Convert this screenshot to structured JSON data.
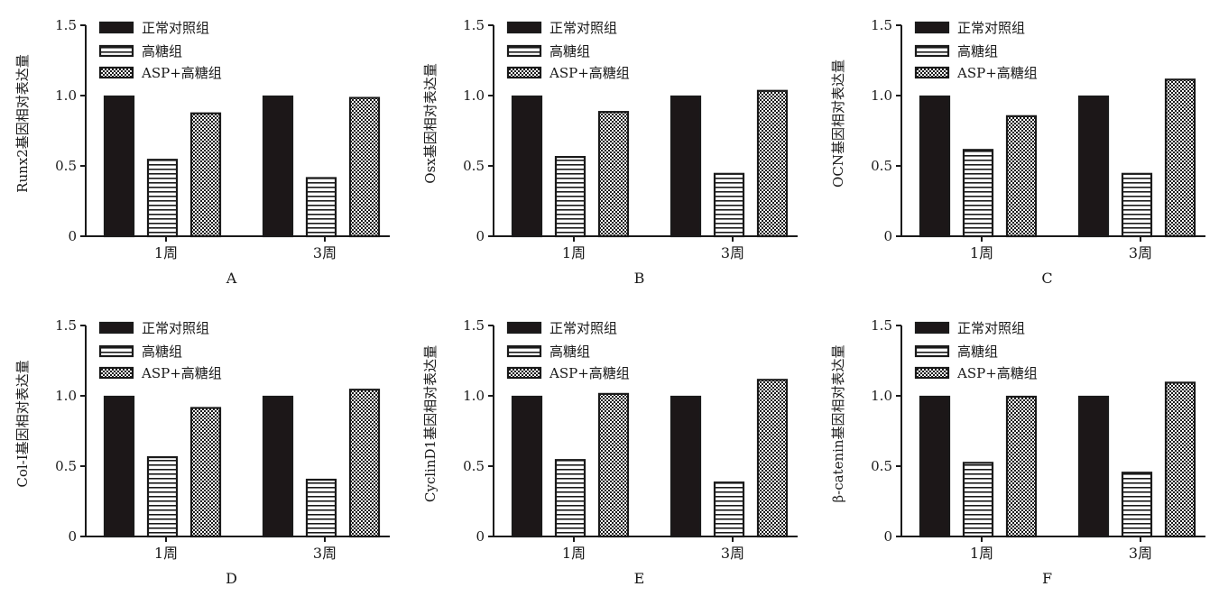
{
  "colors": {
    "axis": "#1a1a1a",
    "bar_outline": "#1a1a1a",
    "control_fill": "#1c1718",
    "pattern_fill": "#ffffff"
  },
  "legend": {
    "entries": [
      {
        "label": "正常对照组",
        "pattern": "solid"
      },
      {
        "label": "高糖组",
        "pattern": "horizontal-lines"
      },
      {
        "label": "ASP+高糖组",
        "pattern": "checkerboard"
      }
    ]
  },
  "chart_data": [
    {
      "type": "bar",
      "panel_label": "A",
      "ylabel": "Runx2基因相对表达量",
      "categories": [
        "1周",
        "3周"
      ],
      "ylim": [
        0,
        1.5
      ],
      "yticks": [
        0,
        0.5,
        1.0,
        1.5
      ],
      "ytick_labels": [
        "0",
        "0.5",
        "1.0",
        "1.5"
      ],
      "series": [
        {
          "name": "正常对照组",
          "values": [
            1.0,
            1.0
          ]
        },
        {
          "name": "高糖组",
          "values": [
            0.55,
            0.42
          ]
        },
        {
          "name": "ASP+高糖组",
          "values": [
            0.88,
            0.99
          ]
        }
      ],
      "legend_position": "top-left",
      "grid": false
    },
    {
      "type": "bar",
      "panel_label": "B",
      "ylabel": "Osx基因相对表达量",
      "categories": [
        "1周",
        "3周"
      ],
      "ylim": [
        0,
        1.5
      ],
      "yticks": [
        0,
        0.5,
        1.0,
        1.5
      ],
      "ytick_labels": [
        "0",
        "0.5",
        "1.0",
        "1.5"
      ],
      "series": [
        {
          "name": "正常对照组",
          "values": [
            1.0,
            1.0
          ]
        },
        {
          "name": "高糖组",
          "values": [
            0.57,
            0.45
          ]
        },
        {
          "name": "ASP+高糖组",
          "values": [
            0.89,
            1.04
          ]
        }
      ],
      "legend_position": "top-left",
      "grid": false
    },
    {
      "type": "bar",
      "panel_label": "C",
      "ylabel": "OCN基因相对表达量",
      "categories": [
        "1周",
        "3周"
      ],
      "ylim": [
        0,
        1.5
      ],
      "yticks": [
        0,
        0.5,
        1.0,
        1.5
      ],
      "ytick_labels": [
        "0",
        "0.5",
        "1.0",
        "1.5"
      ],
      "series": [
        {
          "name": "正常对照组",
          "values": [
            1.0,
            1.0
          ]
        },
        {
          "name": "高糖组",
          "values": [
            0.62,
            0.45
          ]
        },
        {
          "name": "ASP+高糖组",
          "values": [
            0.86,
            1.12
          ]
        }
      ],
      "legend_position": "top-left",
      "grid": false
    },
    {
      "type": "bar",
      "panel_label": "D",
      "ylabel": "Col-I基因相对表达量",
      "categories": [
        "1周",
        "3周"
      ],
      "ylim": [
        0,
        1.5
      ],
      "yticks": [
        0,
        0.5,
        1.0,
        1.5
      ],
      "ytick_labels": [
        "0",
        "0.5",
        "1.0",
        "1.5"
      ],
      "series": [
        {
          "name": "正常对照组",
          "values": [
            1.0,
            1.0
          ]
        },
        {
          "name": "高糖组",
          "values": [
            0.57,
            0.41
          ]
        },
        {
          "name": "ASP+高糖组",
          "values": [
            0.92,
            1.05
          ]
        }
      ],
      "legend_position": "top-left",
      "grid": false
    },
    {
      "type": "bar",
      "panel_label": "E",
      "ylabel": "CyclinD1基因相对表达量",
      "categories": [
        "1周",
        "3周"
      ],
      "ylim": [
        0,
        1.5
      ],
      "yticks": [
        0,
        0.5,
        1.0,
        1.5
      ],
      "ytick_labels": [
        "0",
        "0.5",
        "1.0",
        "1.5"
      ],
      "series": [
        {
          "name": "正常对照组",
          "values": [
            1.0,
            1.0
          ]
        },
        {
          "name": "高糖组",
          "values": [
            0.55,
            0.39
          ]
        },
        {
          "name": "ASP+高糖组",
          "values": [
            1.02,
            1.12
          ]
        }
      ],
      "legend_position": "top-left",
      "grid": false
    },
    {
      "type": "bar",
      "panel_label": "F",
      "ylabel": "β-catenin基因相对表达量",
      "categories": [
        "1周",
        "3周"
      ],
      "ylim": [
        0,
        1.5
      ],
      "yticks": [
        0,
        0.5,
        1.0,
        1.5
      ],
      "ytick_labels": [
        "0",
        "0.5",
        "1.0",
        "1.5"
      ],
      "series": [
        {
          "name": "正常对照组",
          "values": [
            1.0,
            1.0
          ]
        },
        {
          "name": "高糖组",
          "values": [
            0.53,
            0.46
          ]
        },
        {
          "name": "ASP+高糖组",
          "values": [
            1.0,
            1.1
          ]
        }
      ],
      "legend_position": "top-left",
      "grid": false
    }
  ]
}
